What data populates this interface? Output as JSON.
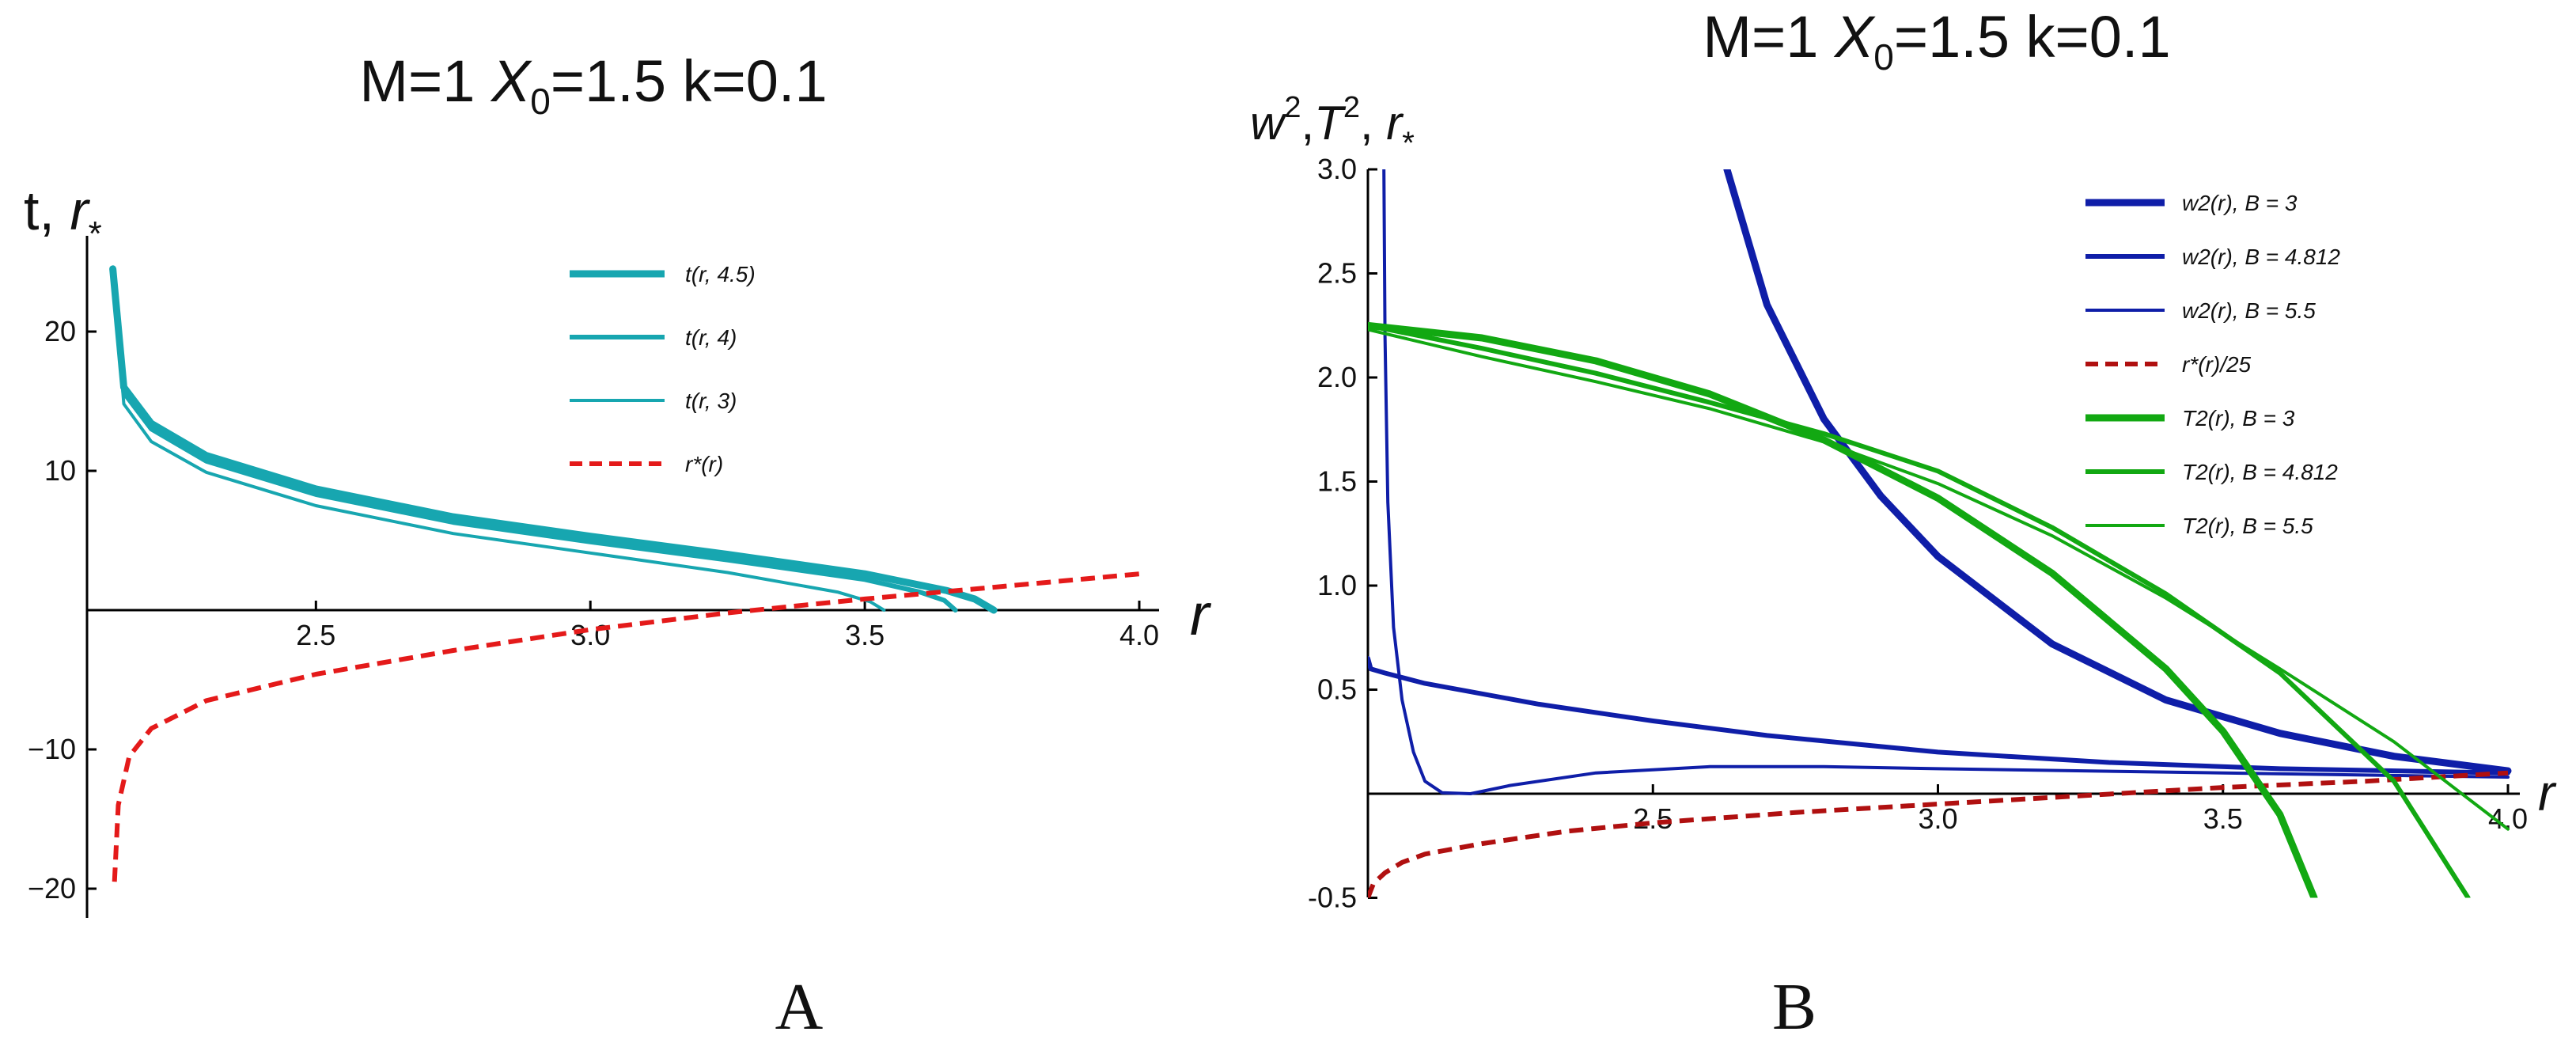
{
  "figure_labels": {
    "a": "A",
    "b": "B"
  },
  "panel_a": {
    "title_main": "M=1 ",
    "title_x": "X",
    "title_sub": "0",
    "title_rest": "=1.5  k=0.1",
    "ylabel": "t, ",
    "ylabel_r": "r",
    "ylabel_star": "*",
    "xlabel": "r"
  },
  "panel_b": {
    "title_main": "M=1 ",
    "title_x": "X",
    "title_sub": "0",
    "title_rest": "=1.5 k=0.1",
    "ylabel_w": "w",
    "ylabel_T": "T",
    "ylabel_exp": "2",
    "ylabel_sep": ",",
    "ylabel_r": "r",
    "ylabel_star": "*",
    "xlabel": "r"
  },
  "chart_data": [
    {
      "id": "A",
      "type": "line",
      "title": "M=1 X0=1.5  k=0.1",
      "xlabel": "r",
      "ylabel": "t, r*",
      "xlim": [
        2.083,
        4.0
      ],
      "ylim": [
        -22,
        26
      ],
      "x_ticks": [
        "2.5",
        "3.0",
        "3.5",
        "4.0"
      ],
      "y_ticks": [
        "20",
        "10",
        "−10",
        "−20"
      ],
      "legend_position": "top-right",
      "series": [
        {
          "name": "t(r, 4.5)",
          "color": "#17a6b0",
          "style": "solid",
          "width": "thick",
          "x": [
            2.13,
            2.15,
            2.2,
            2.3,
            2.5,
            2.75,
            3.0,
            3.25,
            3.5,
            3.65,
            3.7,
            3.735
          ],
          "y": [
            24.5,
            16.0,
            13.4,
            11.1,
            8.7,
            6.7,
            5.3,
            4.0,
            2.6,
            1.4,
            0.8,
            0.0
          ]
        },
        {
          "name": "t(r, 4)",
          "color": "#17a6b0",
          "style": "solid",
          "width": "medium",
          "x": [
            2.13,
            2.15,
            2.2,
            2.3,
            2.5,
            2.75,
            3.0,
            3.25,
            3.5,
            3.6,
            3.645,
            3.665
          ],
          "y": [
            24.5,
            15.6,
            13.0,
            10.7,
            8.3,
            6.3,
            4.9,
            3.6,
            2.2,
            1.3,
            0.7,
            0.0
          ]
        },
        {
          "name": "t(r, 3)",
          "color": "#17a6b0",
          "style": "solid",
          "width": "thin",
          "x": [
            2.13,
            2.15,
            2.2,
            2.3,
            2.5,
            2.75,
            3.0,
            3.25,
            3.45,
            3.51,
            3.535
          ],
          "y": [
            24.5,
            14.8,
            12.1,
            9.9,
            7.5,
            5.5,
            4.1,
            2.7,
            1.3,
            0.6,
            0.0
          ]
        },
        {
          "name": "r*(r)",
          "color": "#e41a1a",
          "style": "dashed",
          "width": "medium",
          "x": [
            2.133,
            2.14,
            2.16,
            2.2,
            2.3,
            2.5,
            2.75,
            3.0,
            3.25,
            3.5,
            3.75,
            4.0
          ],
          "y": [
            -19.5,
            -14.0,
            -10.5,
            -8.5,
            -6.5,
            -4.6,
            -2.9,
            -1.4,
            -0.2,
            0.8,
            1.7,
            2.6
          ]
        }
      ]
    },
    {
      "id": "B",
      "type": "line",
      "title": "M=1 X0=1.5 k=0.1",
      "xlabel": "r",
      "ylabel": "w2,T2, r*",
      "xlim": [
        2.0,
        4.0
      ],
      "ylim": [
        -0.5,
        3.0
      ],
      "x_ticks": [
        "2.5",
        "3.0",
        "3.5",
        "4.0"
      ],
      "y_ticks": [
        "3.0",
        "2.5",
        "2.0",
        "1.5",
        "1.0",
        "0.5",
        "-0.5"
      ],
      "legend_position": "top-right",
      "series": [
        {
          "name": "w2(r), B = 3",
          "color": "#0f1ea8",
          "style": "solid",
          "width": "thick",
          "x": [
            2.63,
            2.7,
            2.8,
            2.9,
            3.0,
            3.2,
            3.4,
            3.6,
            3.8,
            4.0
          ],
          "y": [
            3.0,
            2.35,
            1.8,
            1.43,
            1.14,
            0.72,
            0.45,
            0.29,
            0.18,
            0.11
          ]
        },
        {
          "name": "w2(r), B = 4.812",
          "color": "#0f1ea8",
          "style": "solid",
          "width": "medium",
          "x": [
            2.0,
            2.005,
            2.03,
            2.1,
            2.3,
            2.5,
            2.7,
            3.0,
            3.3,
            3.6,
            4.0
          ],
          "y": [
            0.65,
            0.6,
            0.58,
            0.53,
            0.43,
            0.35,
            0.28,
            0.2,
            0.15,
            0.12,
            0.1
          ]
        },
        {
          "name": "w2(r), B = 5.5",
          "color": "#0f1ea8",
          "style": "solid",
          "width": "thin",
          "x": [
            2.028,
            2.03,
            2.035,
            2.045,
            2.06,
            2.08,
            2.1,
            2.13,
            2.18,
            2.25,
            2.4,
            2.6,
            2.8,
            3.0,
            3.5,
            4.0
          ],
          "y": [
            3.0,
            2.2,
            1.4,
            0.8,
            0.45,
            0.2,
            0.06,
            0.005,
            0.0,
            0.04,
            0.1,
            0.13,
            0.13,
            0.12,
            0.1,
            0.08
          ]
        },
        {
          "name": "r*(r)/25",
          "color": "#b01010",
          "style": "dashed",
          "width": "medium",
          "x": [
            2.0,
            2.01,
            2.03,
            2.06,
            2.1,
            2.2,
            2.35,
            2.5,
            2.75,
            3.0,
            3.25,
            3.5,
            3.75,
            4.0
          ],
          "y": [
            -0.5,
            -0.43,
            -0.38,
            -0.33,
            -0.29,
            -0.24,
            -0.18,
            -0.14,
            -0.09,
            -0.05,
            -0.01,
            0.03,
            0.06,
            0.1
          ]
        },
        {
          "name": "T2(r), B = 3",
          "color": "#12a812",
          "style": "solid",
          "width": "thick",
          "x": [
            2.0,
            2.2,
            2.4,
            2.6,
            2.8,
            3.0,
            3.2,
            3.4,
            3.5,
            3.6,
            3.66
          ],
          "y": [
            2.25,
            2.19,
            2.08,
            1.92,
            1.7,
            1.42,
            1.06,
            0.6,
            0.3,
            -0.1,
            -0.5
          ]
        },
        {
          "name": "T2(r), B = 4.812",
          "color": "#12a812",
          "style": "solid",
          "width": "medium",
          "x": [
            2.0,
            2.2,
            2.4,
            2.6,
            2.8,
            3.0,
            3.2,
            3.4,
            3.6,
            3.8,
            3.93
          ],
          "y": [
            2.25,
            2.14,
            2.02,
            1.88,
            1.73,
            1.55,
            1.28,
            0.96,
            0.58,
            0.06,
            -0.5
          ]
        },
        {
          "name": "T2(r), B = 5.5",
          "color": "#12a812",
          "style": "solid",
          "width": "thin",
          "x": [
            2.0,
            2.2,
            2.4,
            2.6,
            2.8,
            3.0,
            3.2,
            3.4,
            3.6,
            3.8,
            4.0
          ],
          "y": [
            2.23,
            2.1,
            1.98,
            1.85,
            1.69,
            1.49,
            1.24,
            0.94,
            0.6,
            0.25,
            -0.17
          ]
        }
      ]
    }
  ]
}
